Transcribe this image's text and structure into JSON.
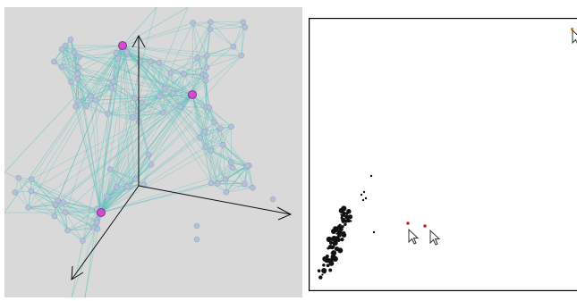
{
  "left_panel": {
    "view": "3d-network-graph",
    "background": "#d9d9d9",
    "edge_color": "#5fc0bd",
    "node_color": "#b3c0da",
    "hub_color": "#d34bd0",
    "axis_color": "#111111"
  },
  "right_panel": {
    "view": "2d-scatter",
    "background": "#ffffff",
    "frame_color": "#000000",
    "point_color": "#111111",
    "highlight_color": "#b31111",
    "corner_marker_color": "#d98a20",
    "cursor_icon": "cursor-arrow-icon"
  }
}
